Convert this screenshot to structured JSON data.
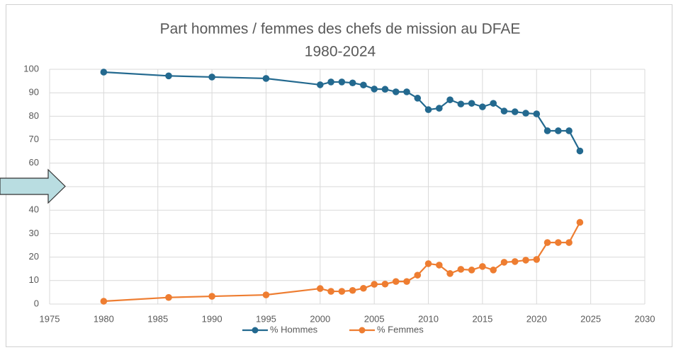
{
  "chart_data": {
    "type": "line",
    "title": "Part hommes / femmes des chefs de mission au DFAE",
    "subtitle": "1980-2024",
    "x": [
      1980,
      1986,
      1990,
      1995,
      2000,
      2001,
      2002,
      2003,
      2004,
      2005,
      2006,
      2007,
      2008,
      2009,
      2010,
      2011,
      2012,
      2013,
      2014,
      2015,
      2016,
      2017,
      2018,
      2019,
      2020,
      2021,
      2022,
      2023,
      2024
    ],
    "series": [
      {
        "name": "% Hommes",
        "color": "#23698f",
        "values": [
          98.8,
          97.2,
          96.7,
          96.1,
          93.4,
          94.6,
          94.6,
          94.2,
          93.3,
          91.6,
          91.5,
          90.4,
          90.4,
          87.7,
          82.8,
          83.4,
          87.0,
          85.2,
          85.5,
          84.0,
          85.5,
          82.2,
          81.9,
          81.3,
          81.0,
          73.8,
          73.8,
          73.8,
          65.2
        ]
      },
      {
        "name": "% Femmes",
        "color": "#ee7d31",
        "values": [
          1.2,
          2.8,
          3.3,
          3.9,
          6.6,
          5.4,
          5.4,
          5.8,
          6.7,
          8.4,
          8.5,
          9.6,
          9.6,
          12.3,
          17.2,
          16.6,
          13.0,
          14.8,
          14.5,
          16.0,
          14.5,
          17.8,
          18.1,
          18.7,
          19.0,
          26.2,
          26.2,
          26.2,
          34.8
        ]
      }
    ],
    "xlim": [
      1975,
      2030
    ],
    "xticks": [
      1975,
      1980,
      1985,
      1990,
      1995,
      2000,
      2005,
      2010,
      2015,
      2020,
      2025,
      2030
    ],
    "ylim": [
      0,
      100
    ],
    "yticks": [
      0,
      10,
      20,
      30,
      40,
      50,
      60,
      70,
      80,
      90,
      100
    ],
    "grid": true,
    "legend": "bottom"
  }
}
